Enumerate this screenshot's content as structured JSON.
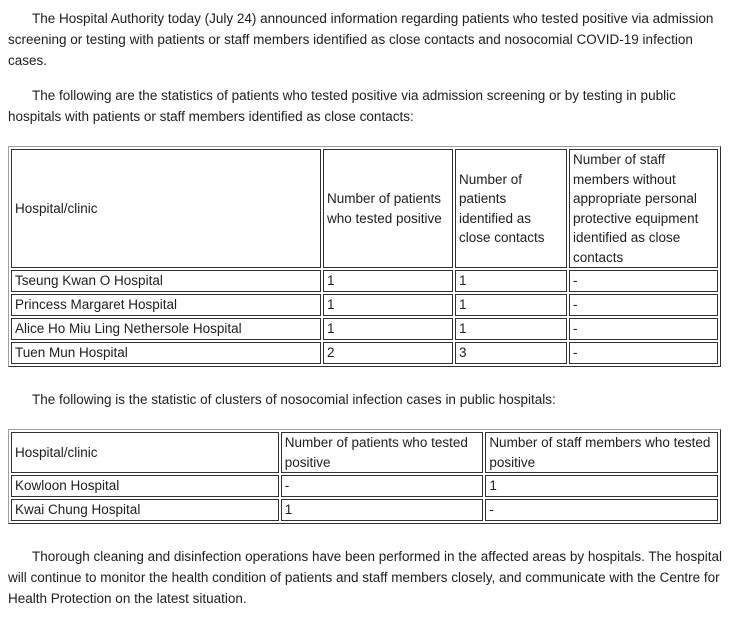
{
  "document": {
    "paragraphs": {
      "intro": "The Hospital Authority today (July 24) announced information regarding patients who tested positive via admission screening or testing with patients or staff members identified as close contacts and nosocomial COVID-19 infection cases.",
      "screening_intro": "The following are the statistics of patients who tested positive via admission screening or by testing in public hospitals with patients or staff members identified as close contacts:",
      "clusters_intro": "The following is the statistic of clusters of nosocomial infection cases in public hospitals:",
      "closing": "Thorough cleaning and disinfection operations have been performed in the affected areas by hospitals. The hospital will continue to monitor the health condition of patients and staff members closely, and communicate with the Centre for Health Protection on the latest situation."
    },
    "table1": {
      "headers": [
        "Hospital/clinic",
        "Number of patients who tested positive",
        "Number of patients identified as close contacts",
        "Number of staff members without appropriate personal protective equipment identified as close contacts"
      ],
      "rows": [
        [
          "Tseung Kwan O Hospital",
          "1",
          "1",
          "-"
        ],
        [
          "Princess Margaret Hospital",
          "1",
          "1",
          "-"
        ],
        [
          "Alice Ho Miu Ling Nethersole Hospital",
          "1",
          "1",
          "-"
        ],
        [
          "Tuen Mun Hospital",
          "2",
          "3",
          "-"
        ]
      ]
    },
    "table2": {
      "headers": [
        "Hospital/clinic",
        "Number of patients who tested positive",
        "Number of staff members who tested positive"
      ],
      "rows": [
        [
          "Kowloon Hospital",
          "-",
          "1"
        ],
        [
          "Kwai Chung Hospital",
          "1",
          "-"
        ]
      ]
    },
    "colors": {
      "text": "#202020",
      "cell_border": "#313131",
      "outer_border_light": "#9e9e9e",
      "background": "#ffffff"
    }
  }
}
